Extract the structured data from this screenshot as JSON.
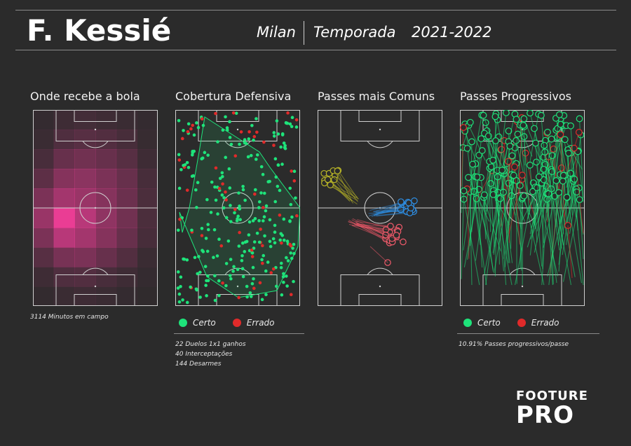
{
  "header": {
    "player": "F. Kessié",
    "team": "Milan",
    "season_label": "Temporada",
    "season": "2021-2022"
  },
  "panels": {
    "receive": {
      "title": "Onde recebe a bola",
      "note": "3114 Minutos em campo"
    },
    "defense": {
      "title": "Cobertura Defensiva",
      "legend_ok": "Certo",
      "legend_err": "Errado",
      "stats": [
        "22 Duelos 1x1 ganhos",
        "40 Interceptações",
        "144 Desarmes"
      ]
    },
    "common": {
      "title": "Passes mais Comuns"
    },
    "progressive": {
      "title": "Passes Progressivos",
      "legend_ok": "Certo",
      "legend_err": "Errado",
      "note": "10.91% Passes progressivos/passe"
    }
  },
  "brand": {
    "line1": "FOOTURE",
    "line2": "PRO"
  },
  "colors": {
    "background": "#2b2b2b",
    "success": "#1ee37a",
    "error": "#e02a2a",
    "heat": "#ff3fa0",
    "cluster_yellow": "#b6b327",
    "cluster_blue": "#2e8fe6",
    "cluster_red": "#f05a6a"
  },
  "heatmap": {
    "grid_cols": 6,
    "grid_rows": 10,
    "intensity": [
      [
        0.05,
        0.1,
        0.12,
        0.1,
        0.08,
        0.05
      ],
      [
        0.08,
        0.18,
        0.22,
        0.2,
        0.14,
        0.06
      ],
      [
        0.15,
        0.3,
        0.35,
        0.3,
        0.22,
        0.1
      ],
      [
        0.25,
        0.45,
        0.48,
        0.4,
        0.3,
        0.14
      ],
      [
        0.4,
        0.6,
        0.55,
        0.45,
        0.32,
        0.16
      ],
      [
        0.55,
        0.95,
        0.7,
        0.5,
        0.35,
        0.16
      ],
      [
        0.4,
        0.7,
        0.6,
        0.45,
        0.3,
        0.14
      ],
      [
        0.22,
        0.38,
        0.4,
        0.3,
        0.2,
        0.08
      ],
      [
        0.1,
        0.18,
        0.2,
        0.15,
        0.1,
        0.05
      ],
      [
        0.04,
        0.08,
        0.1,
        0.08,
        0.05,
        0.03
      ]
    ]
  }
}
